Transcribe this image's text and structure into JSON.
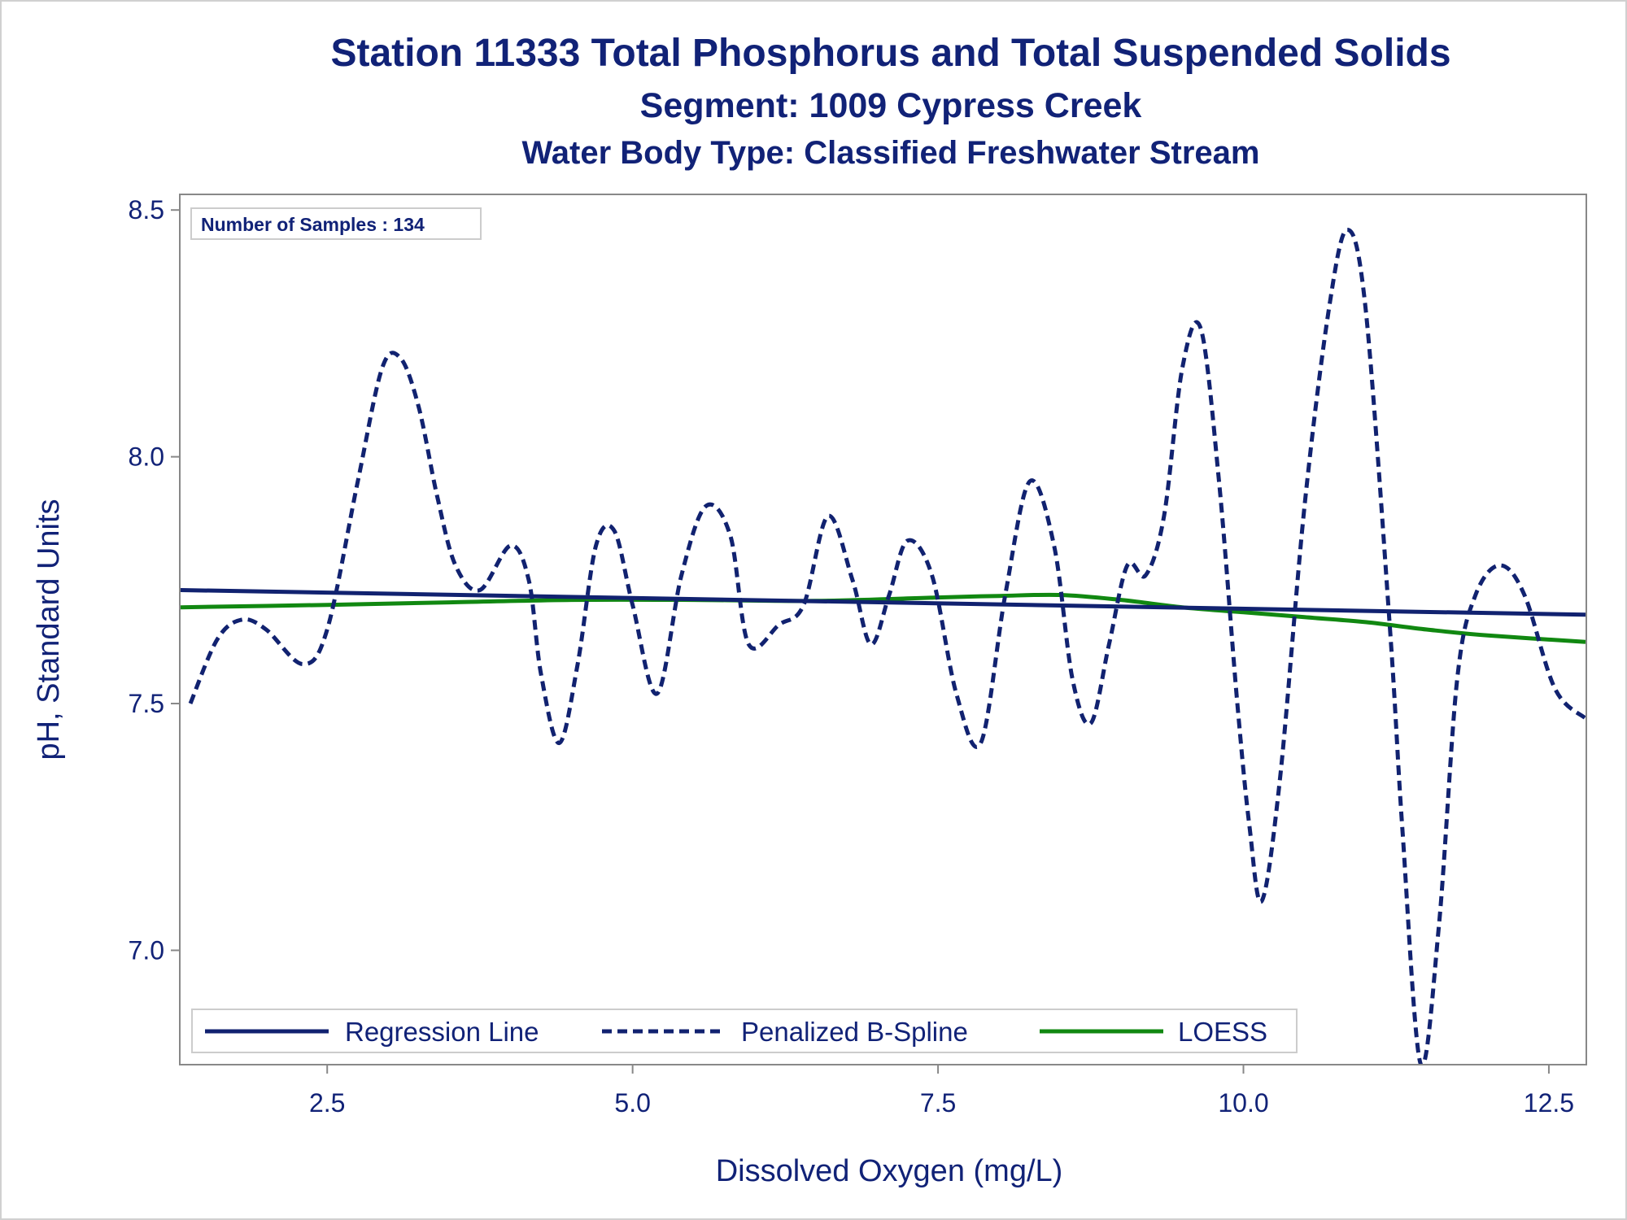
{
  "titles": {
    "line1": "Station 11333  Total Phosphorus and Total Suspended Solids",
    "line2": "Segment: 1009  Cypress Creek",
    "line3": "Water Body Type: Classified Freshwater Stream"
  },
  "inset": {
    "label": "Number of Samples : 134"
  },
  "colors": {
    "text": "#112277",
    "regression": "#112270",
    "spline": "#112270",
    "loess": "#118811",
    "axis": "#888888",
    "frame_border": "#d0d0d0"
  },
  "chart_data": {
    "type": "line",
    "xlabel": "Dissolved Oxygen (mg/L)",
    "ylabel": "pH, Standard Units",
    "xlim": [
      1.3,
      12.8
    ],
    "ylim": [
      6.77,
      8.53
    ],
    "xticks": [
      2.5,
      5.0,
      7.5,
      10.0,
      12.5
    ],
    "xtick_labels": [
      "2.5",
      "5.0",
      "7.5",
      "10.0",
      "12.5"
    ],
    "yticks": [
      7.0,
      7.5,
      8.0,
      8.5
    ],
    "ytick_labels": [
      "7.0",
      "7.5",
      "8.0",
      "8.5"
    ],
    "grid": false,
    "legend_position": "bottom-inside",
    "series": [
      {
        "name": "Regression Line",
        "style": "solid",
        "color": "#112270",
        "x": [
          1.3,
          12.8
        ],
        "y": [
          7.73,
          7.68
        ]
      },
      {
        "name": "Penalized B-Spline",
        "style": "dashed",
        "color": "#112270",
        "x": [
          1.38,
          1.6,
          1.8,
          2.0,
          2.3,
          2.5,
          2.75,
          2.95,
          3.1,
          3.25,
          3.4,
          3.55,
          3.75,
          4.0,
          4.15,
          4.25,
          4.4,
          4.55,
          4.7,
          4.85,
          5.0,
          5.2,
          5.4,
          5.6,
          5.8,
          5.95,
          6.2,
          6.4,
          6.6,
          6.8,
          6.95,
          7.1,
          7.25,
          7.45,
          7.65,
          7.85,
          8.05,
          8.25,
          8.45,
          8.6,
          8.75,
          8.9,
          9.05,
          9.2,
          9.35,
          9.5,
          9.65,
          9.8,
          9.95,
          10.05,
          10.15,
          10.3,
          10.5,
          10.7,
          10.85,
          11.0,
          11.2,
          11.3,
          11.45,
          11.6,
          11.75,
          11.9,
          12.1,
          12.3,
          12.55,
          12.8
        ],
        "y": [
          7.5,
          7.63,
          7.67,
          7.65,
          7.58,
          7.65,
          7.95,
          8.18,
          8.2,
          8.1,
          7.92,
          7.78,
          7.73,
          7.82,
          7.75,
          7.56,
          7.42,
          7.58,
          7.82,
          7.85,
          7.7,
          7.52,
          7.76,
          7.9,
          7.84,
          7.62,
          7.66,
          7.7,
          7.88,
          7.75,
          7.62,
          7.72,
          7.83,
          7.76,
          7.52,
          7.42,
          7.72,
          7.95,
          7.82,
          7.55,
          7.46,
          7.62,
          7.78,
          7.76,
          7.88,
          8.18,
          8.26,
          7.95,
          7.5,
          7.25,
          7.1,
          7.35,
          7.9,
          8.3,
          8.46,
          8.3,
          7.65,
          7.25,
          6.77,
          7.05,
          7.55,
          7.72,
          7.78,
          7.72,
          7.53,
          7.47
        ]
      },
      {
        "name": "LOESS",
        "style": "solid",
        "color": "#118811",
        "x": [
          1.3,
          2.5,
          3.5,
          4.5,
          5.5,
          6.5,
          7.5,
          8.0,
          8.5,
          9.0,
          9.5,
          10.0,
          10.5,
          11.0,
          11.5,
          12.0,
          12.8
        ],
        "y": [
          7.695,
          7.7,
          7.705,
          7.71,
          7.71,
          7.708,
          7.715,
          7.718,
          7.72,
          7.71,
          7.695,
          7.685,
          7.675,
          7.665,
          7.65,
          7.638,
          7.625
        ]
      }
    ]
  }
}
